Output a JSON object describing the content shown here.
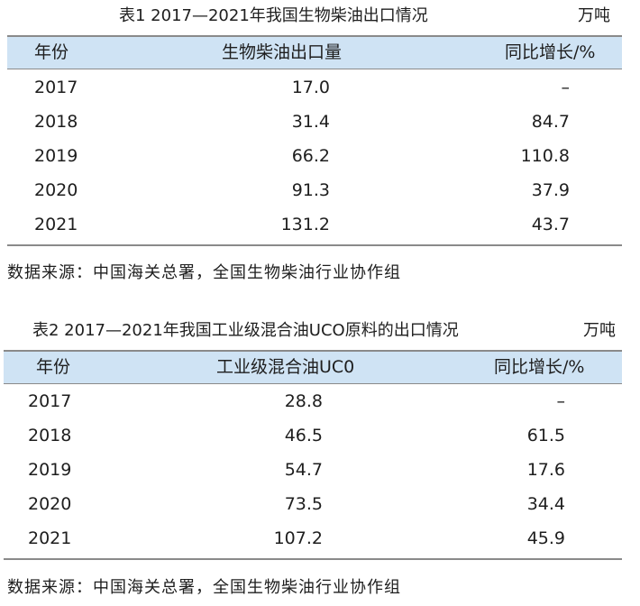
{
  "tables": [
    {
      "caption": "表1  2017—2021年我国生物柴油出口情况",
      "unit": "万吨",
      "headers": [
        "年份",
        "生物柴油出口量",
        "同比增长/%"
      ],
      "rows": [
        [
          "2017",
          "17.0",
          "–"
        ],
        [
          "2018",
          "31.4",
          "84.7"
        ],
        [
          "2019",
          "66.2",
          "110.8"
        ],
        [
          "2020",
          "91.3",
          "37.9"
        ],
        [
          "2021",
          "131.2",
          "43.7"
        ]
      ],
      "source": "数据来源：中国海关总署，全国生物柴油行业协作组"
    },
    {
      "caption": "表2  2017—2021年我国工业级混合油UCO原料的出口情况",
      "unit": "万吨",
      "headers": [
        "年份",
        "工业级混合油UC0",
        "同比增长/%"
      ],
      "rows": [
        [
          "2017",
          "28.8",
          "–"
        ],
        [
          "2018",
          "46.5",
          "61.5"
        ],
        [
          "2019",
          "54.7",
          "17.6"
        ],
        [
          "2020",
          "73.5",
          "34.4"
        ],
        [
          "2021",
          "107.2",
          "45.9"
        ]
      ],
      "source": "数据来源：中国海关总署，全国生物柴油行业协作组"
    }
  ]
}
